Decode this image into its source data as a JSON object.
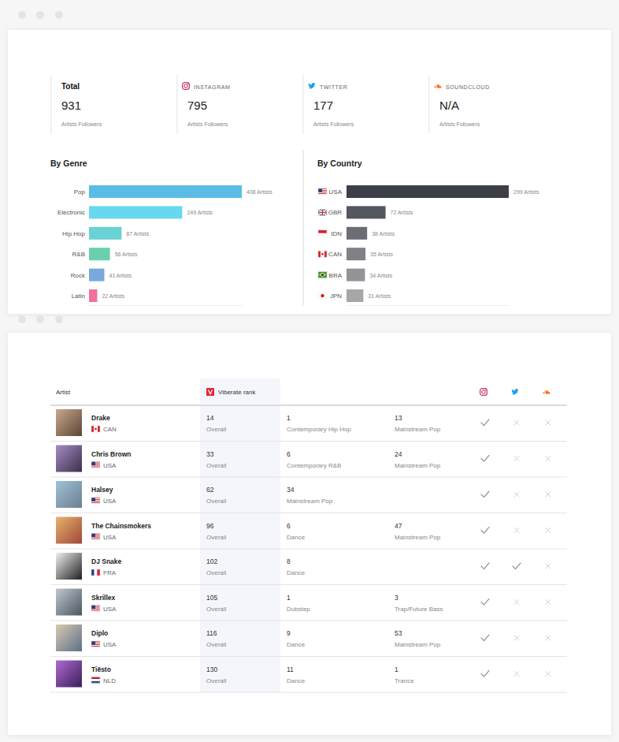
{
  "stats": [
    {
      "title": "Total",
      "value": 931,
      "caption": "Artists Followers"
    },
    {
      "title": "INSTAGRAM",
      "value": 795,
      "caption": "Artists Followers"
    },
    {
      "title": "TWITTER",
      "value": 177,
      "caption": "Artists Followers"
    },
    {
      "title": "SOUNDCLOUD",
      "value": "N/A",
      "caption": "Artists Followers"
    }
  ],
  "chart_data": [
    {
      "type": "bar",
      "title": "By Genre",
      "orientation": "horizontal",
      "categories": [
        "Pop",
        "Electronic",
        "Hip Hop",
        "R&B",
        "Rock",
        "Latin"
      ],
      "values": [
        408,
        249,
        87,
        56,
        41,
        22
      ],
      "value_labels": [
        "408 Artists",
        "249 Artists",
        "87 Artists",
        "56 Artists",
        "41 Artists",
        "22 Artists"
      ],
      "colors": [
        "#5bbde6",
        "#67d8ef",
        "#69d2d4",
        "#6bcfae",
        "#78a8dc",
        "#f2709b"
      ],
      "xlim": [
        0,
        408
      ],
      "data_labels": true,
      "tick_labels": "y"
    },
    {
      "type": "bar",
      "title": "By Country",
      "orientation": "horizontal",
      "categories": [
        "USA",
        "GBR",
        "IDN",
        "CAN",
        "BRA",
        "JPN"
      ],
      "values": [
        299,
        72,
        38,
        35,
        34,
        31
      ],
      "value_labels": [
        "299 Artists",
        "72 Artists",
        "38 Artists",
        "35 Artists",
        "34 Artists",
        "31 Artists"
      ],
      "colors": [
        "#3d3f48",
        "#55575f",
        "#6b6d74",
        "#808186",
        "#939497",
        "#a6a7a9"
      ],
      "xlim": [
        0,
        299
      ],
      "data_labels": true,
      "tick_labels": "y"
    }
  ],
  "table": {
    "columns": [
      "Artist",
      "Viberate rank"
    ],
    "rank_label": "Overall",
    "rows": [
      {
        "artist": "Drake",
        "country": "CAN",
        "overall": 14,
        "genres": [
          {
            "rank": 1,
            "genre": "Contemporary Hip Hop"
          },
          {
            "rank": 13,
            "genre": "Mainstream Pop"
          }
        ],
        "networks": [
          true,
          false,
          false
        ]
      },
      {
        "artist": "Chris Brown",
        "country": "USA",
        "overall": 33,
        "genres": [
          {
            "rank": 6,
            "genre": "Contemporary R&B"
          },
          {
            "rank": 24,
            "genre": "Mainstream Pop"
          }
        ],
        "networks": [
          true,
          false,
          false
        ]
      },
      {
        "artist": "Halsey",
        "country": "USA",
        "overall": 62,
        "genres": [
          {
            "rank": 34,
            "genre": "Mainstream Pop"
          }
        ],
        "networks": [
          true,
          false,
          false
        ]
      },
      {
        "artist": "The Chainsmokers",
        "country": "USA",
        "overall": 96,
        "genres": [
          {
            "rank": 6,
            "genre": "Dance"
          },
          {
            "rank": 47,
            "genre": "Mainstream Pop"
          }
        ],
        "networks": [
          true,
          false,
          false
        ]
      },
      {
        "artist": "DJ Snake",
        "country": "FRA",
        "overall": 102,
        "genres": [
          {
            "rank": 8,
            "genre": "Dance"
          }
        ],
        "networks": [
          true,
          true,
          false
        ]
      },
      {
        "artist": "Skrillex",
        "country": "USA",
        "overall": 105,
        "genres": [
          {
            "rank": 1,
            "genre": "Dubstep"
          },
          {
            "rank": 3,
            "genre": "Trap/Future Bass"
          }
        ],
        "networks": [
          true,
          false,
          false
        ]
      },
      {
        "artist": "Diplo",
        "country": "USA",
        "overall": 116,
        "genres": [
          {
            "rank": 9,
            "genre": "Dance"
          },
          {
            "rank": 53,
            "genre": "Mainstream Pop"
          }
        ],
        "networks": [
          true,
          false,
          false
        ]
      },
      {
        "artist": "Tiësto",
        "country": "NLD",
        "overall": 130,
        "genres": [
          {
            "rank": 11,
            "genre": "Dance"
          },
          {
            "rank": 1,
            "genre": "Trance"
          }
        ],
        "networks": [
          true,
          false,
          false
        ]
      }
    ]
  }
}
